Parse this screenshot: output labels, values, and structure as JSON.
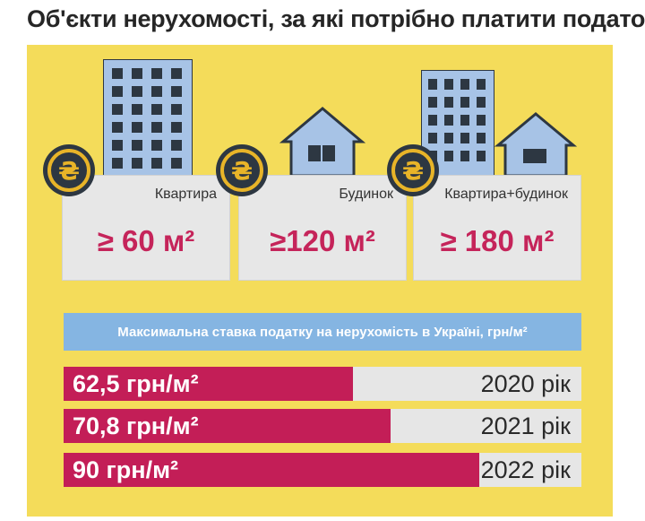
{
  "title": "Об'єкти нерухомості, за які потрібно платити податок",
  "colors": {
    "panel": "#f4dc5a",
    "accent": "#c31e57",
    "banner": "#85b5e2",
    "track": "#e6e6e6",
    "building": "#a7c3e6",
    "coin": "#2d3742",
    "coin_ring": "#e8b428"
  },
  "property_types": [
    {
      "label": "Квартира",
      "area": "≥ 60 м²",
      "icon": "apartment-building-icon"
    },
    {
      "label": "Будинок",
      "area": "≥120 м²",
      "icon": "house-icon"
    },
    {
      "label": "Квартира+будинок",
      "area": "≥ 180 м²",
      "icon": "apartment-and-house-icon"
    }
  ],
  "coin_symbol": "₴",
  "chart_data": {
    "type": "bar",
    "title": "Максимальна ставка податку на нерухомість в Україні, грн/м²",
    "orientation": "horizontal",
    "categories": [
      "2020 рік",
      "2021 рік",
      "2022 рік"
    ],
    "values": [
      62.5,
      70.8,
      90
    ],
    "value_labels": [
      "62,5 грн/м²",
      "70,8 грн/м²",
      "90 грн/м²"
    ],
    "xlim": [
      0,
      112
    ]
  }
}
